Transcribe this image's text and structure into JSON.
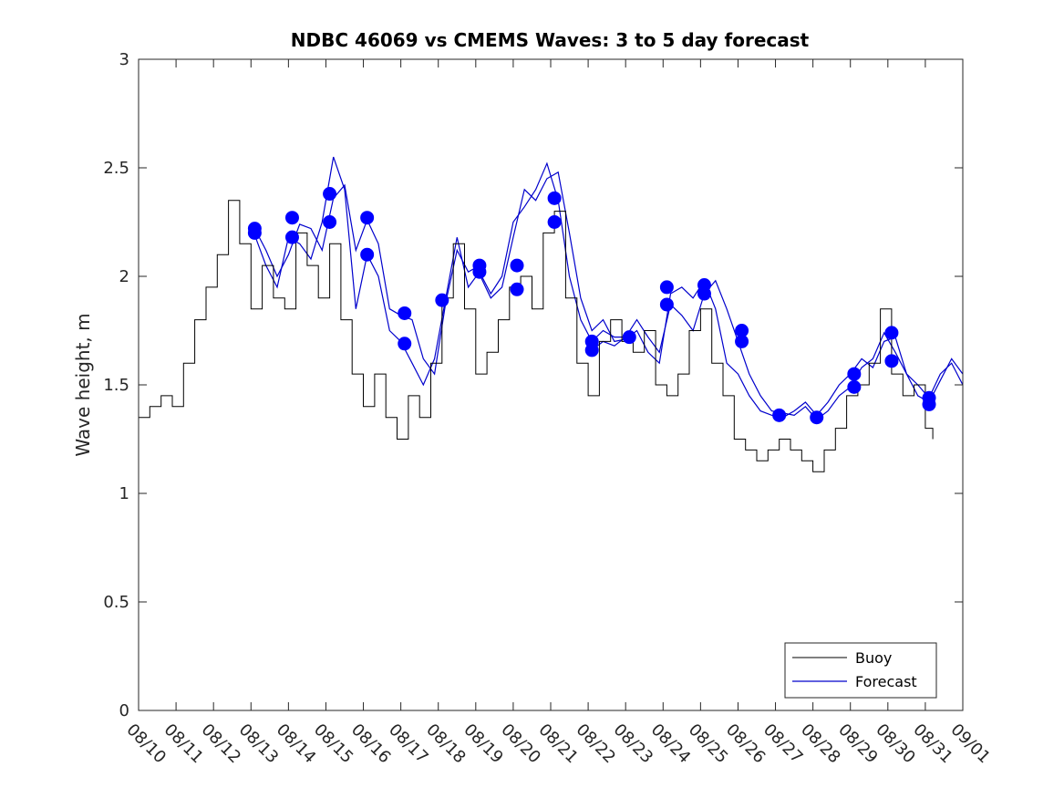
{
  "chart_data": {
    "type": "line",
    "title": "NDBC 46069 vs CMEMS Waves: 3 to 5 day forecast",
    "xlabel": "",
    "ylabel": "Wave height, m",
    "ylim": [
      0,
      3
    ],
    "xlim": [
      0,
      22
    ],
    "x_tick_values": [
      0,
      1,
      2,
      3,
      4,
      5,
      6,
      7,
      8,
      9,
      10,
      11,
      12,
      13,
      14,
      15,
      16,
      17,
      18,
      19,
      20,
      21,
      22
    ],
    "x_tick_labels": [
      "08/10",
      "08/11",
      "08/12",
      "08/13",
      "08/14",
      "08/15",
      "08/16",
      "08/17",
      "08/18",
      "08/19",
      "08/20",
      "08/21",
      "08/22",
      "08/23",
      "08/24",
      "08/25",
      "08/26",
      "08/27",
      "08/28",
      "08/29",
      "08/30",
      "08/31",
      "09/01"
    ],
    "y_tick_values": [
      0,
      0.5,
      1,
      1.5,
      2,
      2.5,
      3
    ],
    "y_tick_labels": [
      "0",
      "0.5",
      "1",
      "1.5",
      "2",
      "2.5",
      "3"
    ],
    "colors": {
      "buoy": "#000000",
      "forecast": "#0000cc",
      "marker": "#0000ff"
    },
    "legend": {
      "position": "bottom-right",
      "entries": [
        "Buoy",
        "Forecast"
      ]
    },
    "series": [
      {
        "name": "Buoy",
        "x": [
          0,
          0.3,
          0.6,
          0.9,
          1.2,
          1.5,
          1.8,
          2.1,
          2.4,
          2.7,
          3.0,
          3.3,
          3.6,
          3.9,
          4.2,
          4.5,
          4.8,
          5.1,
          5.4,
          5.7,
          6.0,
          6.3,
          6.6,
          6.9,
          7.2,
          7.5,
          7.8,
          8.1,
          8.4,
          8.7,
          9.0,
          9.3,
          9.6,
          9.9,
          10.2,
          10.5,
          10.8,
          11.1,
          11.4,
          11.7,
          12.0,
          12.3,
          12.6,
          12.9,
          13.2,
          13.5,
          13.8,
          14.1,
          14.4,
          14.7,
          15.0,
          15.3,
          15.6,
          15.9,
          16.2,
          16.5,
          16.8,
          17.1,
          17.4,
          17.7,
          18.0,
          18.3,
          18.6,
          18.9,
          19.2,
          19.5,
          19.8,
          20.1,
          20.4,
          20.7,
          21.0,
          21.2
        ],
        "values": [
          1.35,
          1.4,
          1.45,
          1.4,
          1.6,
          1.8,
          1.95,
          2.1,
          2.35,
          2.15,
          1.85,
          2.05,
          1.9,
          1.85,
          2.2,
          2.05,
          1.9,
          2.15,
          1.8,
          1.55,
          1.4,
          1.55,
          1.35,
          1.25,
          1.45,
          1.35,
          1.6,
          1.9,
          2.15,
          1.85,
          1.55,
          1.65,
          1.8,
          1.95,
          2.0,
          1.85,
          2.2,
          2.3,
          1.9,
          1.6,
          1.45,
          1.7,
          1.8,
          1.7,
          1.65,
          1.75,
          1.5,
          1.45,
          1.55,
          1.75,
          1.85,
          1.6,
          1.45,
          1.25,
          1.2,
          1.15,
          1.2,
          1.25,
          1.2,
          1.15,
          1.1,
          1.2,
          1.3,
          1.45,
          1.5,
          1.6,
          1.85,
          1.55,
          1.45,
          1.5,
          1.3,
          1.25
        ]
      },
      {
        "name": "Forecast",
        "runs": [
          {
            "x": [
              3.1,
              3.4,
              3.7,
              4.0,
              4.3,
              4.6,
              4.9,
              5.2,
              5.5,
              5.8,
              6.1,
              6.4,
              6.7,
              7.0,
              7.3,
              7.6,
              7.9,
              8.2,
              8.5,
              8.8,
              9.1
            ],
            "values": [
              2.22,
              2.12,
              2.0,
              2.1,
              2.24,
              2.22,
              2.12,
              2.36,
              2.42,
              2.12,
              2.26,
              2.15,
              1.85,
              1.82,
              1.8,
              1.62,
              1.55,
              1.88,
              2.12,
              2.02,
              2.05
            ]
          },
          {
            "x": [
              3.1,
              3.4,
              3.7,
              4.0,
              4.3,
              4.6,
              4.9,
              5.2,
              5.5,
              5.8,
              6.1,
              6.4,
              6.7,
              7.0,
              7.3,
              7.6,
              7.9,
              8.2,
              8.5,
              8.8,
              9.1,
              9.4,
              9.7,
              10.0,
              10.3,
              10.6,
              10.9,
              11.2,
              11.5,
              11.8,
              12.1,
              12.4,
              12.7,
              13.0
            ],
            "values": [
              2.19,
              2.05,
              1.95,
              2.18,
              2.15,
              2.08,
              2.25,
              2.55,
              2.4,
              1.85,
              2.1,
              2.0,
              1.75,
              1.7,
              1.6,
              1.5,
              1.62,
              1.9,
              2.18,
              1.95,
              2.02,
              1.92,
              2.0,
              2.25,
              2.32,
              2.4,
              2.52,
              2.35,
              2.0,
              1.8,
              1.7,
              1.75,
              1.72,
              1.72
            ]
          },
          {
            "x": [
              9.1,
              9.4,
              9.7,
              10.0,
              10.3,
              10.6,
              10.9,
              11.2,
              11.5,
              11.8,
              12.1,
              12.4,
              12.7,
              13.0,
              13.3,
              13.6,
              13.9,
              14.2,
              14.5,
              14.8,
              15.1,
              15.4,
              15.7,
              16.0,
              16.3,
              16.6,
              16.9,
              17.2,
              17.5,
              17.8,
              18.1,
              18.4,
              18.7,
              19.0,
              19.3,
              19.6,
              19.9,
              20.2,
              20.5,
              20.8,
              21.1,
              21.4,
              21.7,
              22.0
            ],
            "values": [
              2.01,
              1.9,
              1.95,
              2.18,
              2.4,
              2.35,
              2.45,
              2.48,
              2.2,
              1.9,
              1.75,
              1.8,
              1.7,
              1.71,
              1.75,
              1.65,
              1.6,
              1.92,
              1.95,
              1.9,
              1.98,
              1.85,
              1.6,
              1.55,
              1.45,
              1.38,
              1.36,
              1.35,
              1.38,
              1.42,
              1.36,
              1.42,
              1.5,
              1.55,
              1.62,
              1.58,
              1.7,
              1.72,
              1.55,
              1.45,
              1.42,
              1.52,
              1.62,
              1.55
            ]
          },
          {
            "x": [
              12.1,
              12.4,
              12.7,
              13.0,
              13.3,
              13.6,
              13.9,
              14.2,
              14.5,
              14.8,
              15.1,
              15.4,
              15.7,
              16.0,
              16.3,
              16.6,
              16.9,
              17.2,
              17.5,
              17.8,
              18.1,
              18.4,
              18.7,
              19.0,
              19.3,
              19.6,
              19.9,
              20.2,
              20.5,
              20.8,
              21.1,
              21.4,
              21.7,
              22.0
            ],
            "values": [
              1.66,
              1.7,
              1.68,
              1.72,
              1.8,
              1.72,
              1.65,
              1.87,
              1.82,
              1.75,
              1.92,
              1.98,
              1.85,
              1.7,
              1.55,
              1.45,
              1.38,
              1.37,
              1.36,
              1.4,
              1.34,
              1.38,
              1.45,
              1.49,
              1.58,
              1.62,
              1.74,
              1.65,
              1.55,
              1.5,
              1.44,
              1.55,
              1.6,
              1.5
            ]
          }
        ],
        "markers": {
          "x": [
            3.1,
            3.1,
            4.1,
            4.1,
            5.1,
            5.1,
            6.1,
            6.1,
            7.1,
            7.1,
            8.1,
            9.1,
            9.1,
            10.1,
            10.1,
            11.1,
            11.1,
            12.1,
            12.1,
            13.1,
            14.1,
            14.1,
            15.1,
            15.1,
            16.1,
            16.1,
            17.1,
            18.1,
            19.1,
            19.1,
            20.1,
            20.1,
            21.1,
            21.1
          ],
          "values": [
            2.22,
            2.2,
            2.27,
            2.18,
            2.38,
            2.25,
            2.27,
            2.1,
            1.83,
            1.69,
            1.89,
            2.05,
            2.02,
            2.05,
            1.94,
            2.36,
            2.25,
            1.7,
            1.66,
            1.72,
            1.95,
            1.87,
            1.96,
            1.92,
            1.75,
            1.7,
            1.36,
            1.35,
            1.55,
            1.49,
            1.74,
            1.61,
            1.44,
            1.41
          ]
        }
      }
    ]
  }
}
